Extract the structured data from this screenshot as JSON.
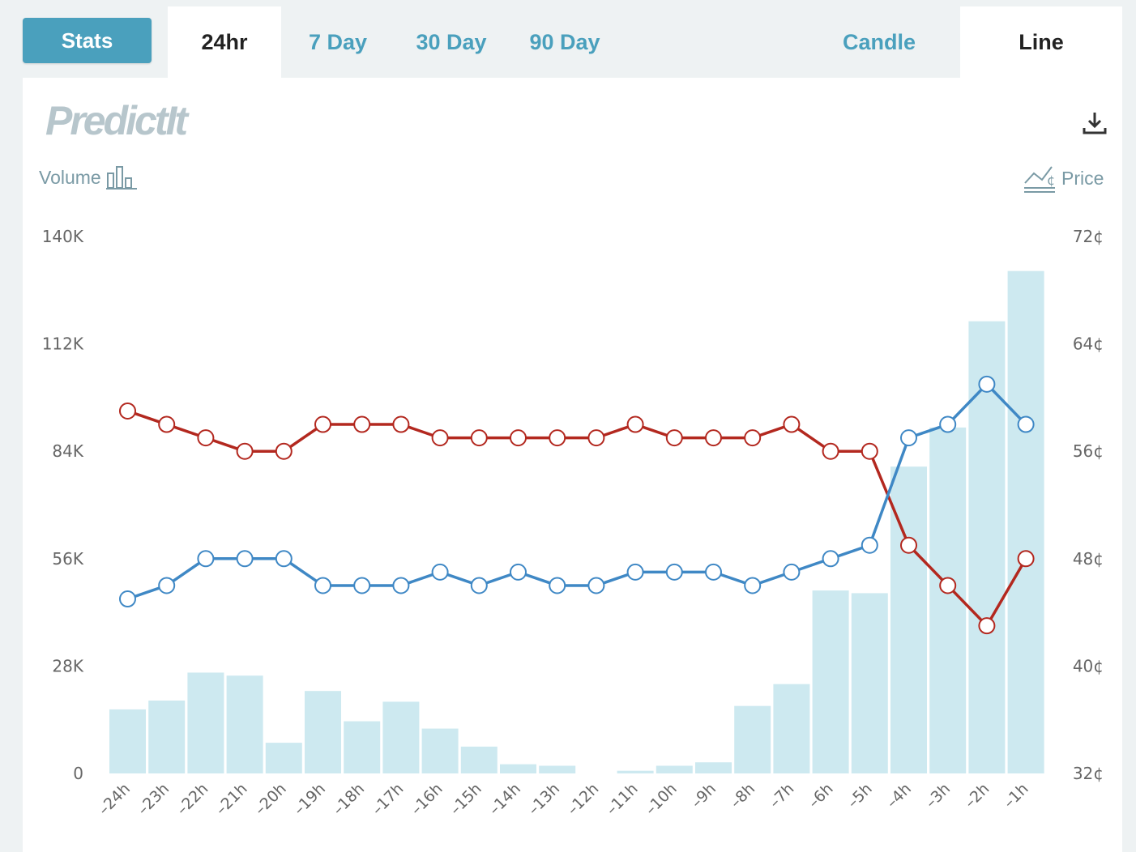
{
  "tabs": {
    "stats": "Stats",
    "ranges": [
      "24hr",
      "7 Day",
      "30 Day",
      "90 Day"
    ],
    "active_range": 0,
    "views": [
      "Candle",
      "Line"
    ],
    "active_view": 1
  },
  "logo": "PredictIt",
  "legend": {
    "volume": "Volume",
    "price": "Price"
  },
  "colors": {
    "volume_bar": "#cde9f0",
    "series_red": "#b3281f",
    "series_blue": "#3f88c5",
    "accent": "#4aa0bd"
  },
  "icons": [
    "download-icon",
    "bar-chart-icon",
    "price-line-icon"
  ],
  "chart_data": {
    "type": "bar+line",
    "categories": [
      "–24h",
      "–23h",
      "–22h",
      "–21h",
      "–20h",
      "–19h",
      "–18h",
      "–17h",
      "–16h",
      "–15h",
      "–14h",
      "–13h",
      "–12h",
      "–11h",
      "–10h",
      "–9h",
      "–8h",
      "–7h",
      "–6h",
      "–5h",
      "–4h",
      "–3h",
      "–2h",
      "–1h"
    ],
    "volume": {
      "axis": "left",
      "ylim": [
        0,
        140000
      ],
      "ticks": [
        "0",
        "28K",
        "56K",
        "84K",
        "112K",
        "140K"
      ],
      "values": [
        16700,
        19000,
        26300,
        25500,
        8000,
        21500,
        13600,
        18700,
        11700,
        7000,
        2400,
        2000,
        0,
        700,
        2000,
        2900,
        17600,
        23300,
        47700,
        47000,
        80000,
        90200,
        117900,
        131000
      ]
    },
    "price": {
      "axis": "right",
      "ylim": [
        32,
        72
      ],
      "ticks": [
        "32¢",
        "40¢",
        "48¢",
        "56¢",
        "64¢",
        "72¢"
      ],
      "series": [
        {
          "color": "#b3281f",
          "values": [
            59,
            58,
            57,
            56,
            56,
            58,
            58,
            58,
            57,
            57,
            57,
            57,
            57,
            58,
            57,
            57,
            57,
            58,
            56,
            56,
            49,
            46,
            43,
            48
          ]
        },
        {
          "color": "#3f88c5",
          "values": [
            45,
            46,
            48,
            48,
            48,
            46,
            46,
            46,
            47,
            46,
            47,
            46,
            46,
            47,
            47,
            47,
            46,
            47,
            48,
            49,
            57,
            58,
            61,
            58
          ]
        }
      ]
    }
  }
}
